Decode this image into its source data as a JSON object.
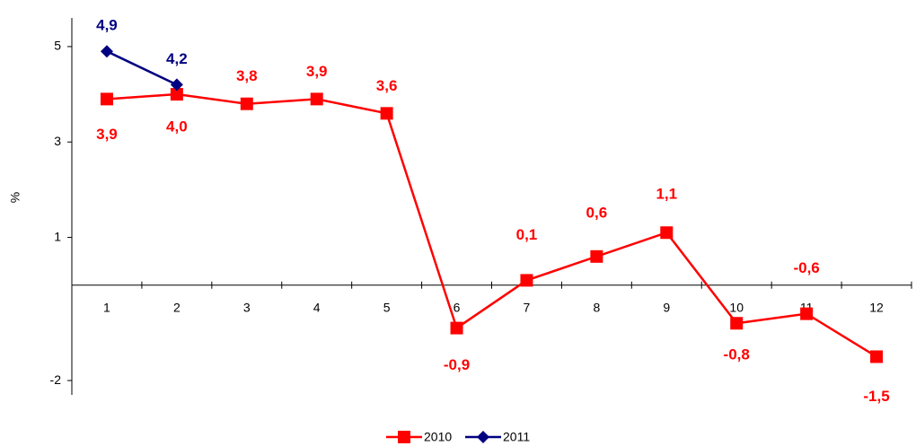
{
  "chart_data": {
    "type": "line",
    "y_label": "%",
    "categories": [
      "1",
      "2",
      "3",
      "4",
      "5",
      "6",
      "7",
      "8",
      "9",
      "10",
      "11",
      "12"
    ],
    "series": [
      {
        "name": "2010",
        "color": "#ff0000",
        "marker": "square",
        "values": [
          3.9,
          4.0,
          3.8,
          3.9,
          3.6,
          -0.9,
          0.1,
          0.6,
          1.1,
          -0.8,
          -0.6,
          -1.5
        ],
        "value_labels": [
          "3,9",
          "4,0",
          "3,8",
          "3,9",
          "3,6",
          "-0,9",
          "0,1",
          "0,6",
          "1,1",
          "-0,8",
          "-0,6",
          "-1,5"
        ]
      },
      {
        "name": "2011",
        "color": "#000080",
        "marker": "diamond",
        "values": [
          4.9,
          4.2,
          null,
          null,
          null,
          null,
          null,
          null,
          null,
          null,
          null,
          null
        ],
        "value_labels": [
          "4,9",
          "4,2",
          null,
          null,
          null,
          null,
          null,
          null,
          null,
          null,
          null,
          null
        ]
      }
    ],
    "ylim": [
      -2.3,
      5.6
    ],
    "yticks": [
      -2,
      1,
      3,
      5
    ],
    "legend": "bottom"
  }
}
